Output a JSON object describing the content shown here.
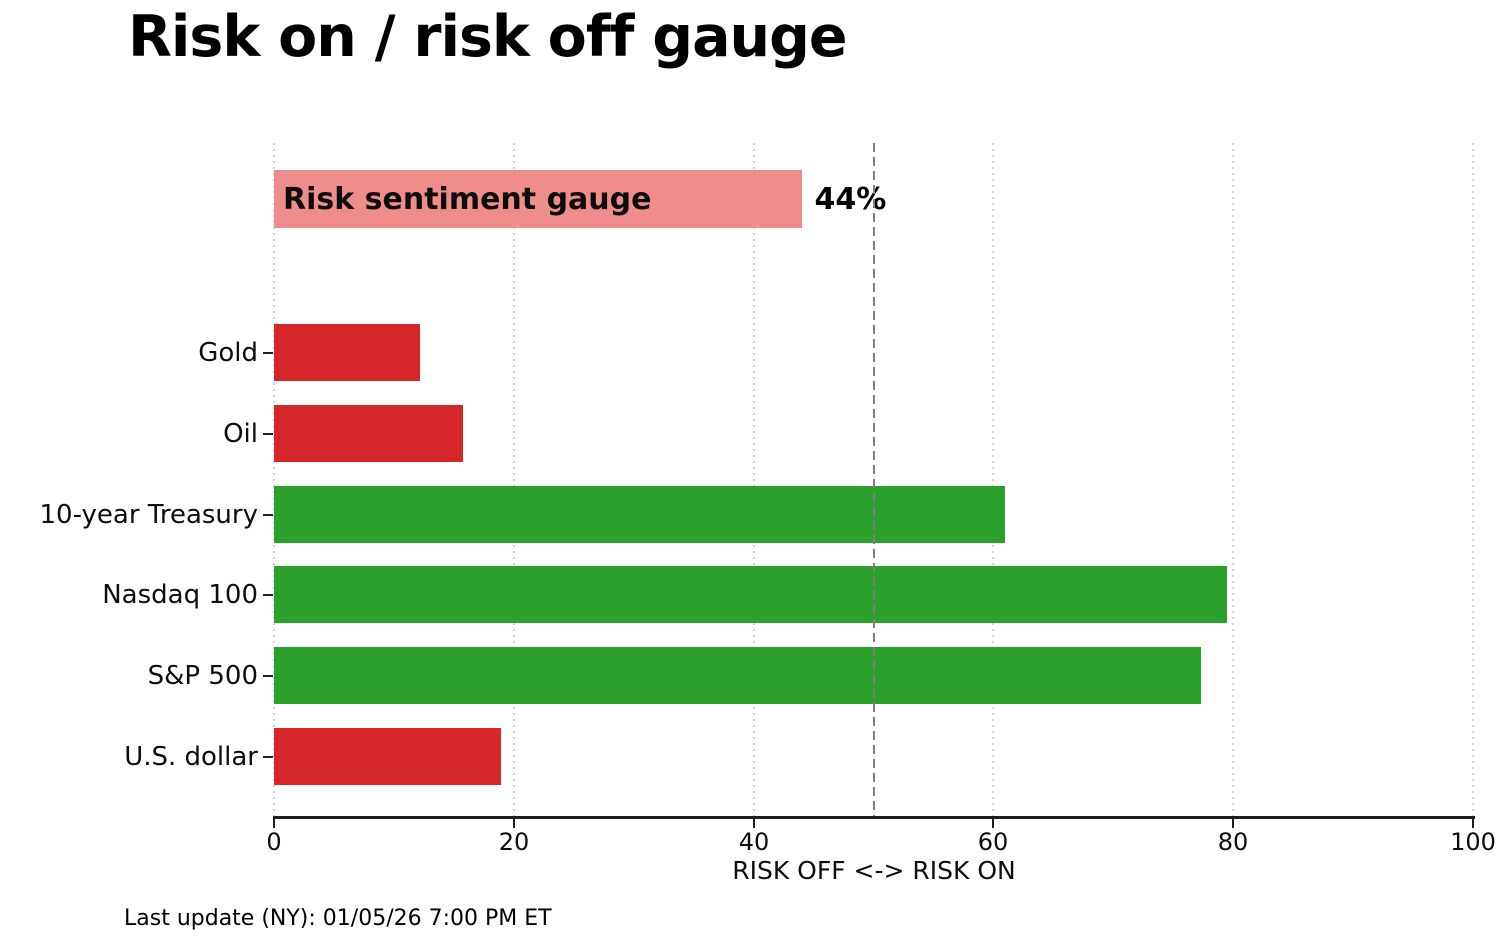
{
  "title": "Risk on / risk off gauge",
  "footer": "Last update (NY): 01/05/26 7:00 PM ET",
  "chart_data": {
    "type": "bar",
    "orientation": "horizontal",
    "title": "Risk on / risk off gauge",
    "xlabel": "RISK OFF <-> RISK ON",
    "xlim": [
      0,
      100
    ],
    "xticks": [
      0,
      20,
      40,
      60,
      80,
      100
    ],
    "grid": "vertical dotted gridlines at each x tick",
    "gauge": {
      "label": "Risk sentiment gauge",
      "value": 44,
      "display": "44%",
      "color": "#ef8c8c"
    },
    "categories": [
      "Gold",
      "Oil",
      "10-year Treasury",
      "Nasdaq 100",
      "S&P 500",
      "U.S. dollar"
    ],
    "values": [
      12.2,
      15.8,
      61,
      79.5,
      77.3,
      18.9
    ],
    "bar_colors": [
      "#d62728",
      "#d62728",
      "#2ca02c",
      "#2ca02c",
      "#2ca02c",
      "#d62728"
    ],
    "reference_line": {
      "x": 50,
      "style": "dashed",
      "color": "#7f7f7f"
    },
    "colors": {
      "risk_off_red": "#d62728",
      "risk_on_green": "#2ca02c",
      "gauge_pink": "#ef8c8c",
      "gridline": "#d4d4d4",
      "axis": "#1f1f1f"
    }
  }
}
